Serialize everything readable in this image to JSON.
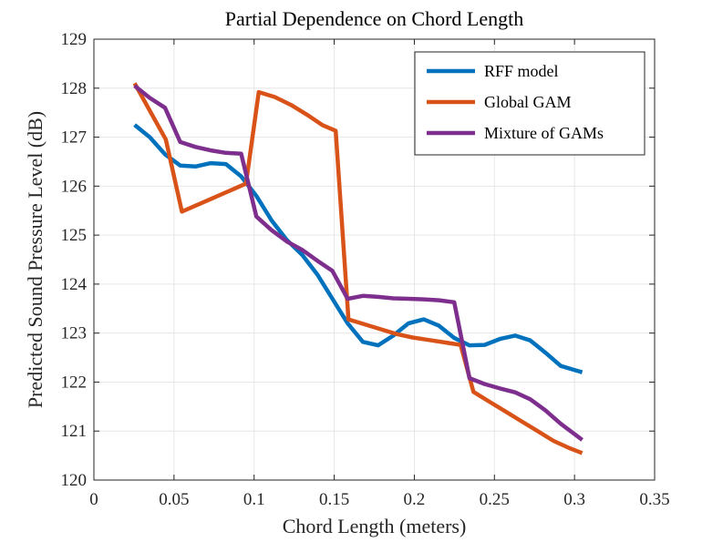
{
  "chart_data": {
    "type": "line",
    "title": "Partial Dependence on Chord Length",
    "xlabel": "Chord Length (meters)",
    "ylabel": "Predicted Sound Pressure Level (dB)",
    "xlim": [
      0,
      0.35
    ],
    "ylim": [
      120,
      129
    ],
    "x_ticks": [
      0,
      0.05,
      0.1,
      0.15,
      0.2,
      0.25,
      0.3,
      0.35
    ],
    "x_tick_labels": [
      "0",
      "0.05",
      "0.1",
      "0.15",
      "0.2",
      "0.25",
      "0.3",
      "0.35"
    ],
    "y_ticks": [
      120,
      121,
      122,
      123,
      124,
      125,
      126,
      127,
      128,
      129
    ],
    "y_tick_labels": [
      "120",
      "121",
      "122",
      "123",
      "124",
      "125",
      "126",
      "127",
      "128",
      "129"
    ],
    "grid": true,
    "legend_position": "top-right",
    "series": [
      {
        "name": "RFF model",
        "color": "#0072BD",
        "x": [
          0.0254,
          0.0349,
          0.0444,
          0.0539,
          0.0634,
          0.0729,
          0.0824,
          0.0919,
          0.1014,
          0.1109,
          0.1204,
          0.1299,
          0.1394,
          0.1489,
          0.1584,
          0.1679,
          0.1774,
          0.1869,
          0.1964,
          0.2059,
          0.2154,
          0.2249,
          0.2344,
          0.2439,
          0.2534,
          0.2629,
          0.2724,
          0.2819,
          0.2914,
          0.3048
        ],
        "y": [
          127.25,
          127.0,
          126.65,
          126.42,
          126.4,
          126.47,
          126.45,
          126.2,
          125.8,
          125.3,
          124.9,
          124.6,
          124.2,
          123.7,
          123.2,
          122.82,
          122.75,
          122.95,
          123.2,
          123.28,
          123.15,
          122.9,
          122.75,
          122.76,
          122.88,
          122.95,
          122.85,
          122.6,
          122.33,
          122.2
        ]
      },
      {
        "name": "Global GAM",
        "color": "#D95319",
        "x": [
          0.0254,
          0.0449,
          0.0549,
          0.0949,
          0.1029,
          0.1129,
          0.1229,
          0.1329,
          0.1429,
          0.1509,
          0.1589,
          0.1689,
          0.1789,
          0.1889,
          0.1989,
          0.2089,
          0.2189,
          0.2289,
          0.2369,
          0.2469,
          0.2569,
          0.2669,
          0.2769,
          0.2869,
          0.2969,
          0.3048
        ],
        "y": [
          128.1,
          126.95,
          125.48,
          126.05,
          127.92,
          127.82,
          127.66,
          127.46,
          127.24,
          127.13,
          123.28,
          123.18,
          123.08,
          122.98,
          122.91,
          122.86,
          122.81,
          122.76,
          121.8,
          121.6,
          121.4,
          121.2,
          121.0,
          120.8,
          120.65,
          120.55
        ]
      },
      {
        "name": "Mixture of GAMs",
        "color": "#7E2F8E",
        "x": [
          0.0254,
          0.0349,
          0.0444,
          0.0539,
          0.0634,
          0.0729,
          0.0824,
          0.0919,
          0.1014,
          0.1109,
          0.1204,
          0.1299,
          0.1394,
          0.1489,
          0.1584,
          0.1679,
          0.1774,
          0.1869,
          0.1964,
          0.2059,
          0.2154,
          0.2249,
          0.2344,
          0.2439,
          0.2534,
          0.2629,
          0.2724,
          0.2819,
          0.2914,
          0.3048
        ],
        "y": [
          128.05,
          127.8,
          127.6,
          126.9,
          126.8,
          126.73,
          126.68,
          126.66,
          125.38,
          125.1,
          124.87,
          124.7,
          124.48,
          124.27,
          123.7,
          123.76,
          123.74,
          123.71,
          123.7,
          123.69,
          123.67,
          123.63,
          122.08,
          121.96,
          121.87,
          121.79,
          121.65,
          121.42,
          121.15,
          120.82
        ]
      }
    ]
  }
}
